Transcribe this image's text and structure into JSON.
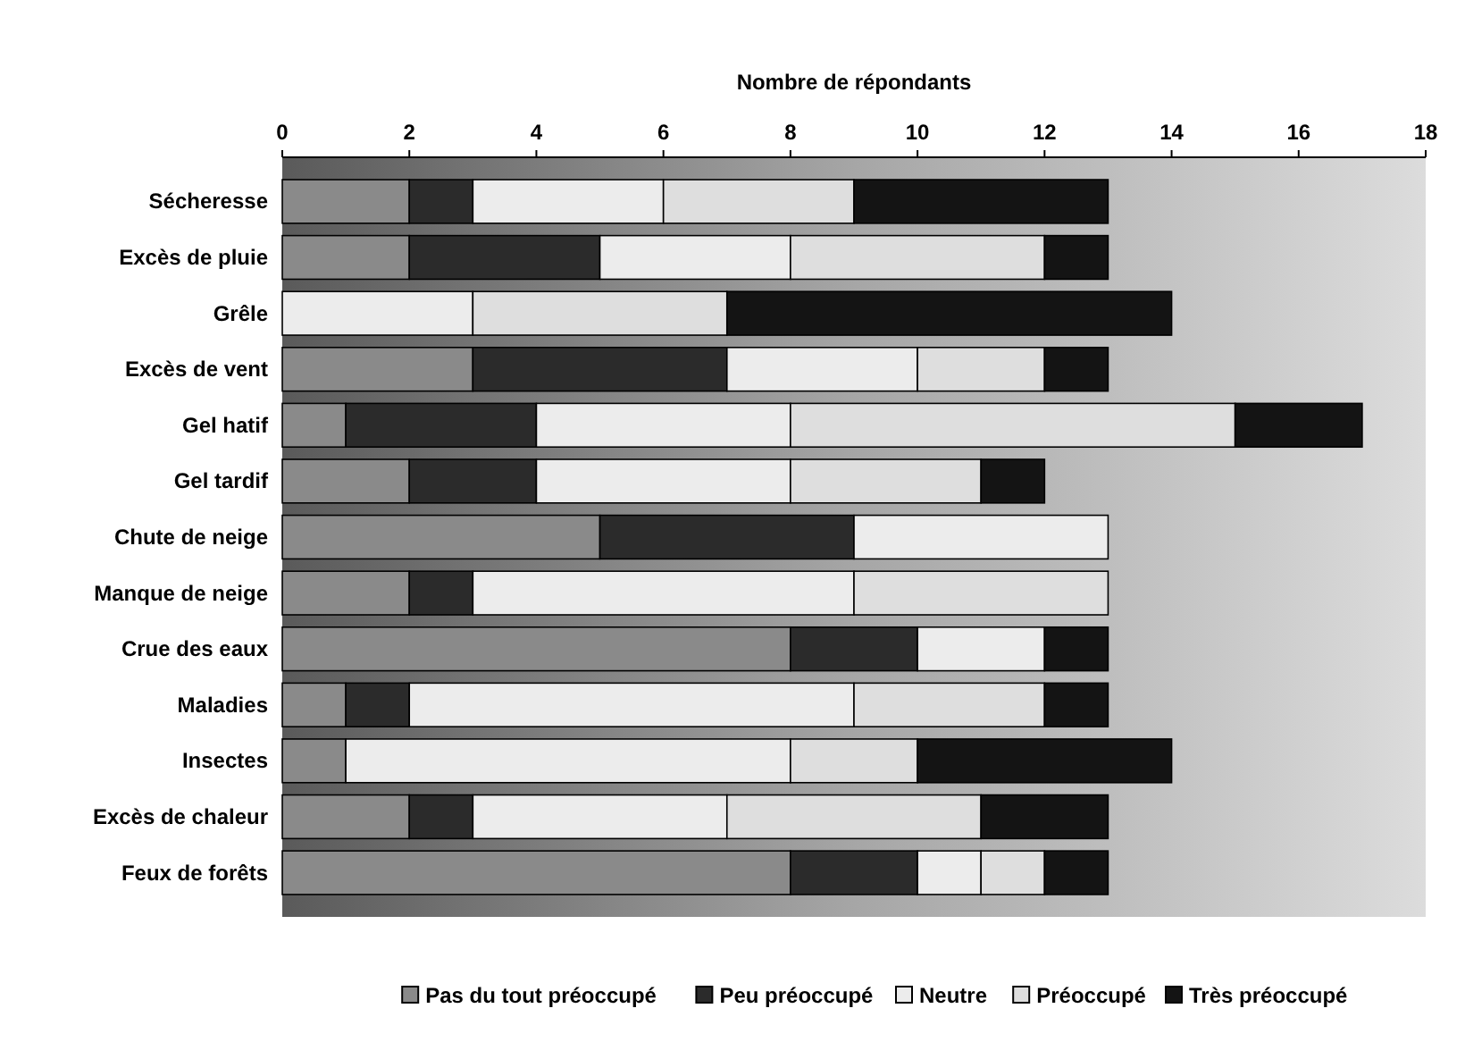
{
  "chart_data": {
    "type": "bar",
    "orientation": "horizontal",
    "stacked": true,
    "xlabel": "Nombre de répondants",
    "categories": [
      "Sécheresse",
      "Excès de pluie",
      "Grêle",
      "Excès de vent",
      "Gel hatif",
      "Gel tardif",
      "Chute de neige",
      "Manque de neige",
      "Crue des eaux",
      "Maladies",
      "Insectes",
      "Excès de chaleur",
      "Feux de forêts"
    ],
    "series": [
      {
        "name": "Pas du tout préoccupé",
        "color": "#8a8a8a",
        "values": [
          2,
          2,
          0,
          3,
          1,
          2,
          5,
          2,
          8,
          1,
          1,
          2,
          8
        ]
      },
      {
        "name": "Peu préoccupé",
        "color": "#2b2b2b",
        "values": [
          1,
          3,
          0,
          4,
          3,
          2,
          4,
          1,
          2,
          1,
          0,
          1,
          2
        ]
      },
      {
        "name": "Neutre",
        "color": "#ececec",
        "values": [
          3,
          3,
          3,
          3,
          4,
          4,
          4,
          6,
          2,
          7,
          7,
          4,
          1
        ]
      },
      {
        "name": "Préoccupé",
        "color": "#dedede",
        "values": [
          3,
          4,
          4,
          2,
          7,
          3,
          0,
          4,
          0,
          3,
          2,
          4,
          1
        ]
      },
      {
        "name": "Très préoccupé",
        "color": "#141414",
        "values": [
          4,
          1,
          7,
          1,
          2,
          1,
          0,
          0,
          1,
          1,
          4,
          2,
          1
        ]
      }
    ],
    "xlim": [
      0,
      18
    ],
    "xticks": [
      0,
      2,
      4,
      6,
      8,
      10,
      12,
      14,
      16,
      18
    ],
    "grid": false,
    "legend": "bottom"
  }
}
